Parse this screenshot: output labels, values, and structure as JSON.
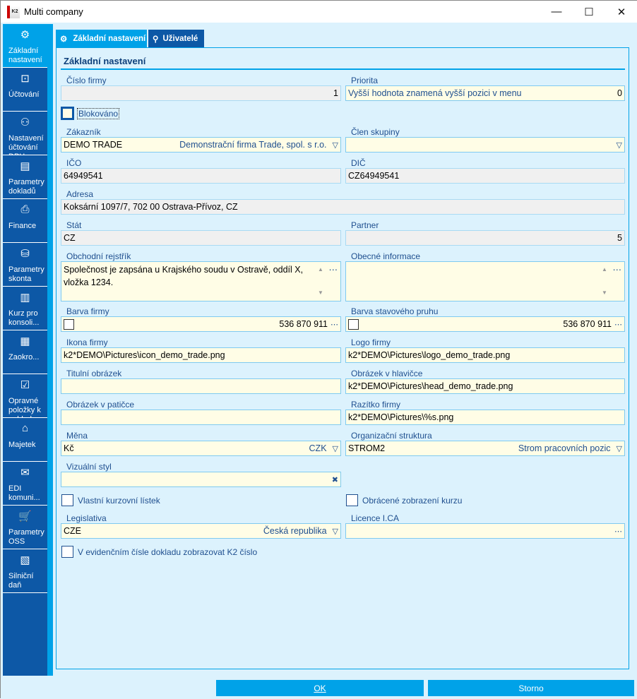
{
  "window": {
    "title": "Multi company",
    "logo_text": "K2"
  },
  "sidebar": {
    "items": [
      {
        "label": "Základní nastavení",
        "icon": "gear-icon",
        "glyph": "⚙"
      },
      {
        "label": "Účtování",
        "icon": "money-icon",
        "glyph": "⊡"
      },
      {
        "label": "Nastavení účtování DPH",
        "icon": "tax-settings-icon",
        "glyph": "⚇"
      },
      {
        "label": "Parametry dokladů samovy",
        "icon": "document-icon",
        "glyph": "▤"
      },
      {
        "label": "Finance",
        "icon": "printer-icon",
        "glyph": "⎙"
      },
      {
        "label": "Parametry skonta",
        "icon": "coins-icon",
        "glyph": "⛁"
      },
      {
        "label": "Kurz pro konsoli...",
        "icon": "report-icon",
        "glyph": "▥"
      },
      {
        "label": "Zaokro...",
        "icon": "calculator-icon",
        "glyph": "▦"
      },
      {
        "label": "Opravné položky k pohled",
        "icon": "checked-document-icon",
        "glyph": "☑"
      },
      {
        "label": "Majetek",
        "icon": "building-icon",
        "glyph": "⌂"
      },
      {
        "label": "EDI komuni...",
        "icon": "mail-settings-icon",
        "glyph": "✉"
      },
      {
        "label": "Parametry OSS",
        "icon": "cart-icon",
        "glyph": "🛒"
      },
      {
        "label": "Silniční daň",
        "icon": "document-settings-icon",
        "glyph": "▧"
      }
    ]
  },
  "tabs": [
    {
      "label": "Základní nastavení",
      "active": true
    },
    {
      "label": "Uživatelé",
      "active": false
    }
  ],
  "section_title": "Základní nastavení",
  "fields": {
    "cislo_firmy": {
      "label": "Číslo firmy",
      "value": "1"
    },
    "priorita": {
      "label": "Priorita",
      "placeholder": "Vyšší hodnota znamená vyšší pozici v menu",
      "value": "0"
    },
    "blokovano": {
      "label": "Blokováno",
      "checked": false
    },
    "zakaznik": {
      "label": "Zákazník",
      "value": "DEMO TRADE",
      "description": "Demonstrační firma Trade, spol. s r.o."
    },
    "clen_skupiny": {
      "label": "Člen skupiny",
      "value": ""
    },
    "ico": {
      "label": "IČO",
      "value": "64949541"
    },
    "dic": {
      "label": "DIČ",
      "value": "CZ64949541"
    },
    "adresa": {
      "label": "Adresa",
      "value": "Koksární 1097/7, 702 00  Ostrava-Přívoz, CZ"
    },
    "stat": {
      "label": "Stát",
      "value": "CZ"
    },
    "partner": {
      "label": "Partner",
      "value": "5"
    },
    "obchodni_rejstrik": {
      "label": "Obchodní rejstřík",
      "value": "Společnost je zapsána u Krajského soudu v Ostravě, oddíl X, vložka 1234."
    },
    "obecne_informace": {
      "label": "Obecné informace",
      "value": ""
    },
    "barva_firmy": {
      "label": "Barva firmy",
      "value": "536 870 911"
    },
    "barva_pruhu": {
      "label": "Barva stavového pruhu",
      "value": "536 870 911"
    },
    "ikona_firmy": {
      "label": "Ikona firmy",
      "value": "k2*DEMO\\Pictures\\icon_demo_trade.png"
    },
    "logo_firmy": {
      "label": "Logo firmy",
      "value": "k2*DEMO\\Pictures\\logo_demo_trade.png"
    },
    "titulni_obrazek": {
      "label": "Titulní obrázek",
      "value": ""
    },
    "obrazek_hlavicka": {
      "label": "Obrázek v hlavičce",
      "value": "k2*DEMO\\Pictures\\head_demo_trade.png"
    },
    "obrazek_paticka": {
      "label": "Obrázek v patičce",
      "value": ""
    },
    "razitko": {
      "label": "Razítko firmy",
      "value": "k2*DEMO\\Pictures\\%s.png"
    },
    "mena": {
      "label": "Měna",
      "value": "Kč",
      "description": "CZK"
    },
    "org_struktura": {
      "label": "Organizační struktura",
      "value": "STROM2",
      "description": "Strom pracovních pozic"
    },
    "vizualni_styl": {
      "label": "Vizuální styl",
      "value": ""
    },
    "vlastni_kurzovni": {
      "label": "Vlastní kurzovní lístek",
      "checked": false
    },
    "obracene_zobrazeni": {
      "label": "Obrácené zobrazení kurzu",
      "checked": false
    },
    "legislativa": {
      "label": "Legislativa",
      "value": "CZE",
      "description": "Česká republika"
    },
    "licence": {
      "label": "Licence I.CA",
      "value": ""
    },
    "k2_cislo": {
      "label": "V evidenčním čísle dokladu zobrazovat K2 číslo",
      "checked": false
    }
  },
  "buttons": {
    "ok": "OK",
    "storno": "Storno"
  },
  "colors": {
    "sidebar": "#0d58a6",
    "accent": "#00a2e8",
    "field": "#fffde6",
    "background": "#dcf2fd"
  }
}
